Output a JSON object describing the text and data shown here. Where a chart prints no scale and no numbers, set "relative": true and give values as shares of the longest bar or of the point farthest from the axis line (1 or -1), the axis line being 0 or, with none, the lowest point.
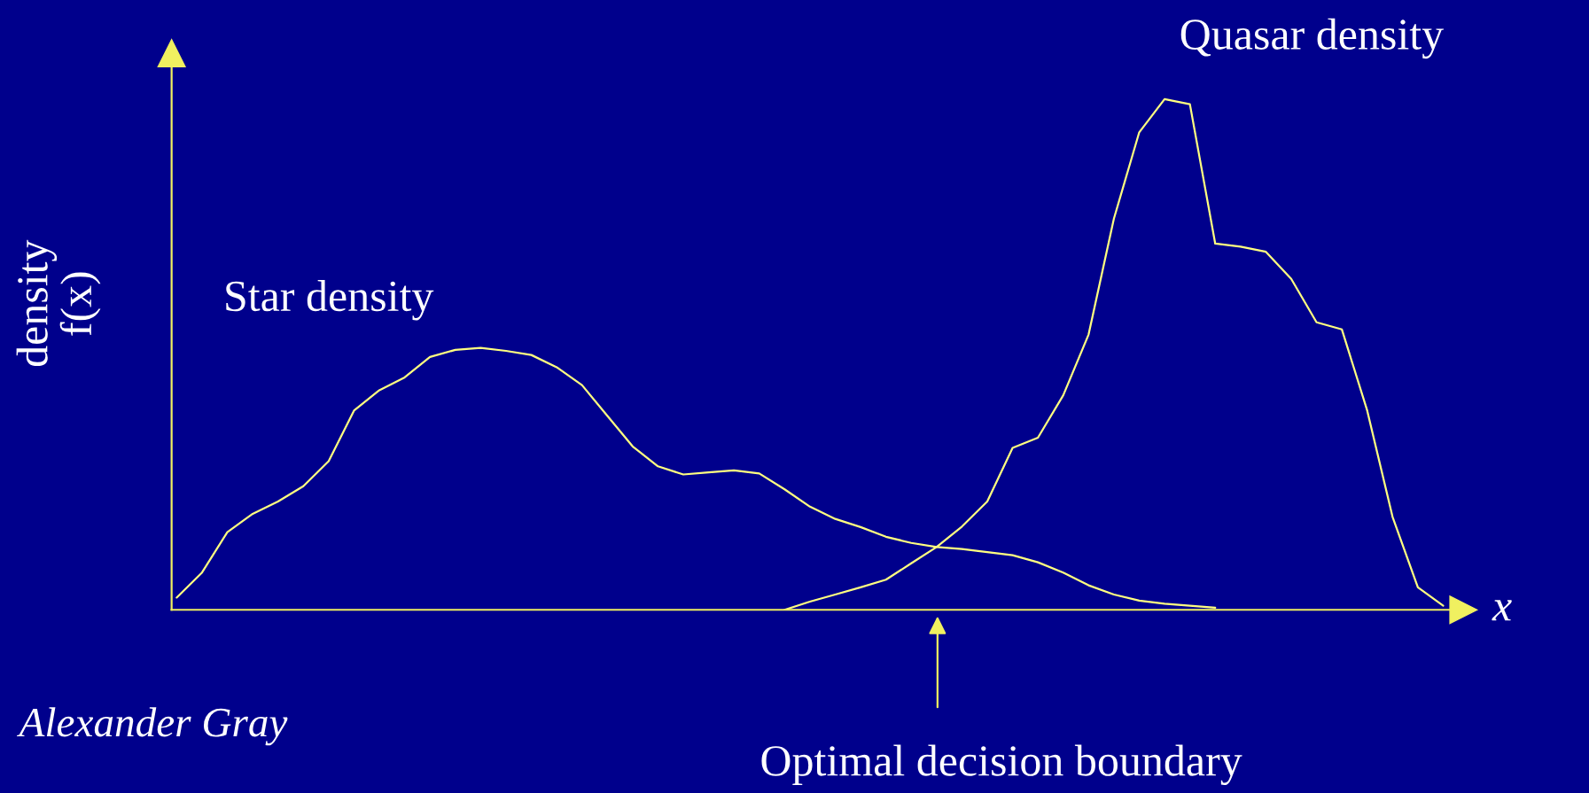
{
  "chart_data": {
    "type": "line",
    "relative": true,
    "legend": false,
    "grid": false,
    "marker": "none",
    "line_style": "solid",
    "ylabel": "density\nf(x)",
    "xlabel": "x",
    "categories": [
      null,
      null,
      null,
      null,
      null,
      null,
      null,
      null,
      null,
      null,
      null,
      null,
      null,
      null,
      null,
      null,
      null,
      null,
      null,
      null,
      null,
      null,
      null,
      null,
      null,
      null,
      null,
      null,
      null,
      null,
      null,
      null,
      null,
      null,
      null,
      null,
      null,
      null,
      null,
      null,
      null,
      null,
      null,
      null,
      null,
      null,
      null,
      null,
      null,
      null,
      null
    ],
    "series": [
      {
        "name": "Star density",
        "color": "#ffff80",
        "values": [
          0.024,
          0.073,
          0.152,
          0.188,
          0.212,
          0.242,
          0.291,
          0.39,
          0.43,
          0.455,
          0.495,
          0.509,
          0.513,
          0.507,
          0.499,
          0.475,
          0.44,
          0.38,
          0.32,
          0.281,
          0.265,
          0.269,
          0.273,
          0.267,
          0.236,
          0.202,
          0.178,
          0.162,
          0.143,
          0.131,
          0.123,
          0.119,
          0.113,
          0.107,
          0.093,
          0.073,
          0.048,
          0.03,
          0.018,
          0.012,
          0.008,
          0.004,
          null,
          null,
          null,
          null,
          null,
          null,
          null,
          null,
          null
        ]
      },
      {
        "name": "Quasar density",
        "color": "#ffff80",
        "values": [
          null,
          null,
          null,
          null,
          null,
          null,
          null,
          null,
          null,
          null,
          null,
          null,
          null,
          null,
          null,
          null,
          null,
          null,
          null,
          null,
          null,
          null,
          null,
          null,
          0,
          0.016,
          0.03,
          0.044,
          0.059,
          0.091,
          0.123,
          0.163,
          0.212,
          0.317,
          0.337,
          0.42,
          0.539,
          0.766,
          0.935,
          1.0,
          0.99,
          0.717,
          0.711,
          0.701,
          0.648,
          0.563,
          0.549,
          0.39,
          0.182,
          0.044,
          0.008
        ]
      }
    ],
    "annotations": [
      "Optimal decision boundary",
      "Alexander Gray"
    ]
  }
}
